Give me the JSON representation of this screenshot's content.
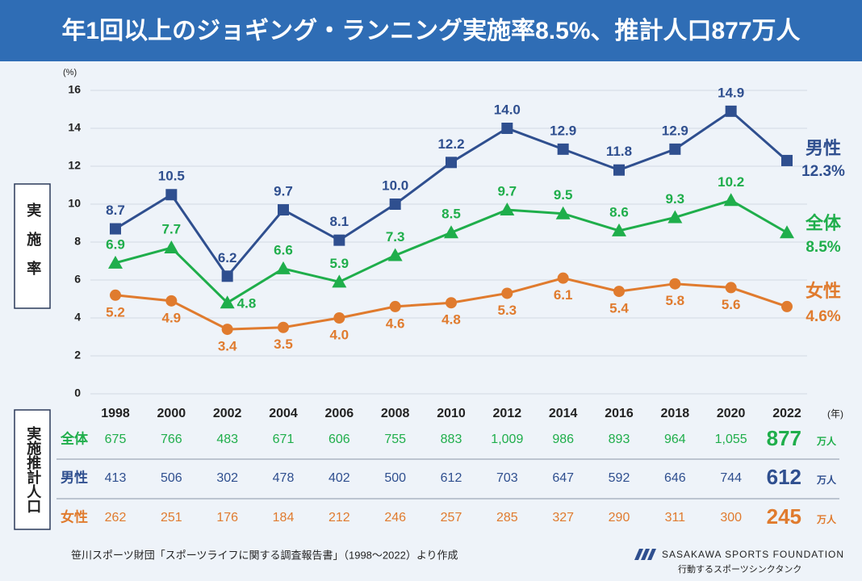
{
  "chart_data": {
    "type": "line",
    "title": "年1回以上のジョギング・ランニング実施率8.5%、推計人口877万人",
    "y_unit": "(%)",
    "x_unit": "(年)",
    "y_label": "実施率",
    "categories": [
      "1998",
      "2000",
      "2002",
      "2004",
      "2006",
      "2008",
      "2010",
      "2012",
      "2014",
      "2016",
      "2018",
      "2020",
      "2022"
    ],
    "ylim": [
      0,
      16
    ],
    "yticks": [
      0,
      2,
      4,
      6,
      8,
      10,
      12,
      14,
      16
    ],
    "grid": true,
    "series": [
      {
        "name": "男性",
        "color": "#2f4f8f",
        "marker": "square",
        "values": [
          8.7,
          10.5,
          6.2,
          9.7,
          8.1,
          10.0,
          12.2,
          14.0,
          12.9,
          11.8,
          12.9,
          14.9,
          12.3
        ],
        "value_labels": [
          "8.7",
          "10.5",
          "6.2",
          "9.7",
          "8.1",
          "10.0",
          "12.2",
          "14.0",
          "12.9",
          "11.8",
          "12.9",
          "14.9",
          "12.3%"
        ]
      },
      {
        "name": "全体",
        "color": "#1fae4b",
        "marker": "triangle",
        "values": [
          6.9,
          7.7,
          4.8,
          6.6,
          5.9,
          7.3,
          8.5,
          9.7,
          9.5,
          8.6,
          9.3,
          10.2,
          8.5
        ],
        "value_labels": [
          "6.9",
          "7.7",
          "4.8",
          "6.6",
          "5.9",
          "7.3",
          "8.5",
          "9.7",
          "9.5",
          "8.6",
          "9.3",
          "10.2",
          "8.5%"
        ]
      },
      {
        "name": "女性",
        "color": "#e07b2e",
        "marker": "circle",
        "values": [
          5.2,
          4.9,
          3.4,
          3.5,
          4.0,
          4.6,
          4.8,
          5.3,
          6.1,
          5.4,
          5.8,
          5.6,
          4.6
        ],
        "value_labels": [
          "5.2",
          "4.9",
          "3.4",
          "3.5",
          "4.0",
          "4.6",
          "4.8",
          "5.3",
          "6.1",
          "5.4",
          "5.8",
          "5.6",
          "4.6%"
        ]
      }
    ]
  },
  "table": {
    "label": "実施推計人口",
    "unit": "万人",
    "rows": [
      {
        "name": "全体",
        "color": "#1fae4b",
        "values": [
          675,
          766,
          483,
          671,
          606,
          755,
          883,
          "1,009",
          986,
          893,
          964,
          "1,055",
          877
        ]
      },
      {
        "name": "男性",
        "color": "#2f4f8f",
        "values": [
          413,
          506,
          302,
          478,
          402,
          500,
          612,
          703,
          647,
          592,
          646,
          744,
          612
        ]
      },
      {
        "name": "女性",
        "color": "#e07b2e",
        "values": [
          262,
          251,
          176,
          184,
          212,
          246,
          257,
          285,
          327,
          290,
          311,
          300,
          245
        ]
      }
    ]
  },
  "footer": {
    "source": "笹川スポーツ財団「スポーツライフに関する調査報告書」（1998～2022）より作成",
    "logo": "SASAKAWA SPORTS FOUNDATION",
    "tagline": "行動するスポーツシンクタンク"
  }
}
